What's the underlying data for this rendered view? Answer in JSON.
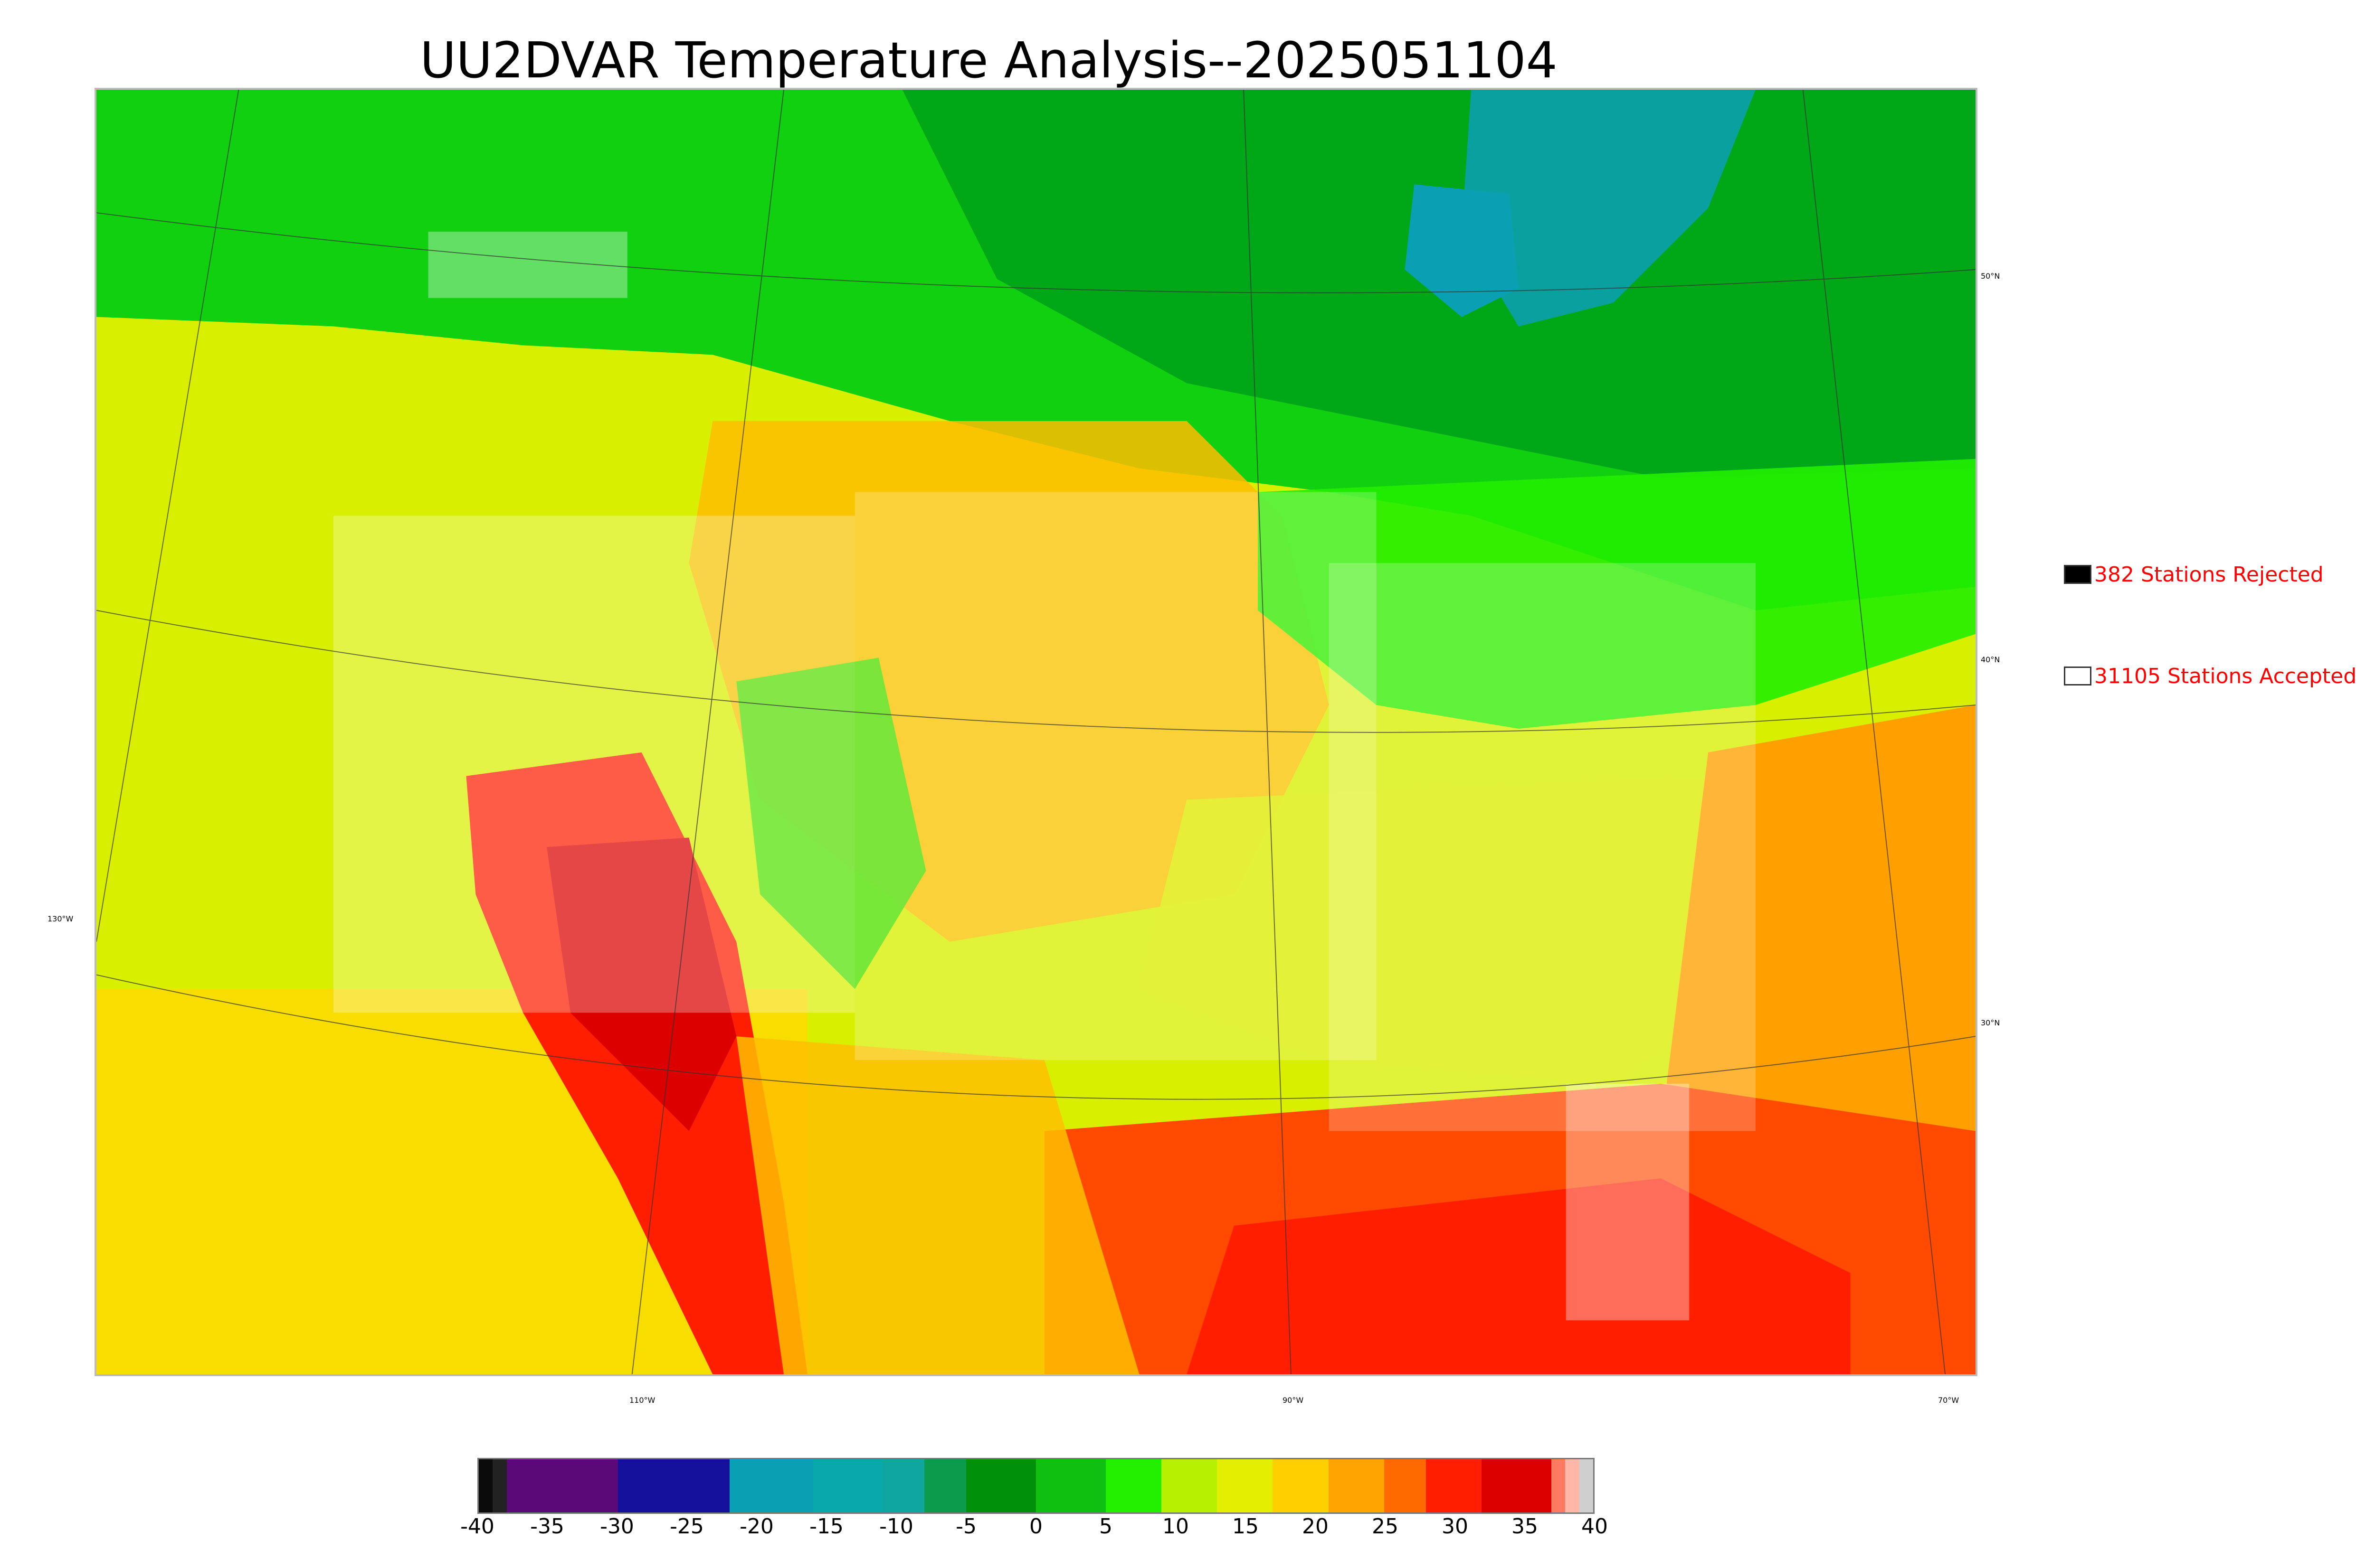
{
  "title": "UU2DVAR Temperature Analysis--2025051104",
  "legend": {
    "rejected": {
      "label": "382 Stations Rejected",
      "swatch_color": "#000000"
    },
    "accepted": {
      "label": "31105 Stations Accepted",
      "swatch_color": "#ffffff"
    }
  },
  "graticule": {
    "lat_labels": [
      "50°N",
      "40°N",
      "30°N"
    ],
    "lon_labels": [
      "130°W",
      "110°W",
      "90°W",
      "70°W"
    ]
  },
  "colorbar": {
    "ticks": [
      "-40",
      "-35",
      "-30",
      "-25",
      "-20",
      "-15",
      "-10",
      "-5",
      "0",
      "5",
      "10",
      "15",
      "20",
      "25",
      "30",
      "35",
      "40"
    ],
    "range": [
      -40,
      40
    ],
    "segments": [
      {
        "from": -40,
        "to": -39,
        "color": "#0b0b0b"
      },
      {
        "from": -39,
        "to": -38,
        "color": "#222222"
      },
      {
        "from": -38,
        "to": -30,
        "color": "#5a0a78"
      },
      {
        "from": -30,
        "to": -22,
        "color": "#14109c"
      },
      {
        "from": -22,
        "to": -16,
        "color": "#0aa0b4"
      },
      {
        "from": -16,
        "to": -11,
        "color": "#08a8ac"
      },
      {
        "from": -11,
        "to": -8,
        "color": "#10a6a0"
      },
      {
        "from": -8,
        "to": -5,
        "color": "#0c9a4c"
      },
      {
        "from": -5,
        "to": 0,
        "color": "#00900a"
      },
      {
        "from": 0,
        "to": 5,
        "color": "#10c010"
      },
      {
        "from": 5,
        "to": 9,
        "color": "#22ee00"
      },
      {
        "from": 9,
        "to": 13,
        "color": "#b6f000"
      },
      {
        "from": 13,
        "to": 17,
        "color": "#e4ee00"
      },
      {
        "from": 17,
        "to": 21,
        "color": "#ffd000"
      },
      {
        "from": 21,
        "to": 25,
        "color": "#ffa400"
      },
      {
        "from": 25,
        "to": 28,
        "color": "#ff6a00"
      },
      {
        "from": 28,
        "to": 32,
        "color": "#ff1e00"
      },
      {
        "from": 32,
        "to": 37,
        "color": "#dc0000"
      },
      {
        "from": 37,
        "to": 38,
        "color": "#ff7a60"
      },
      {
        "from": 38,
        "to": 39,
        "color": "#ffb8a8"
      },
      {
        "from": 39,
        "to": 40,
        "color": "#cfcfcf"
      }
    ]
  }
}
